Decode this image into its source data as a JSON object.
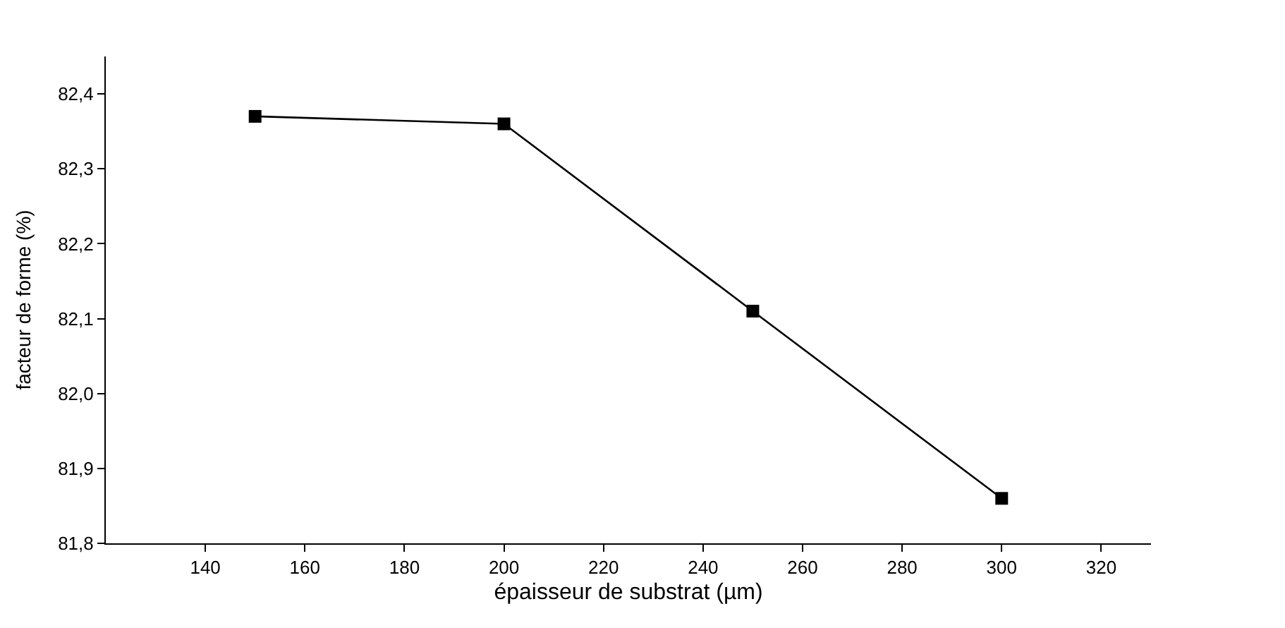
{
  "chart_data": {
    "type": "line",
    "xlabel": "épaisseur de substrat (µm)",
    "ylabel": "facteur de forme (%)",
    "x": [
      150,
      200,
      250,
      300
    ],
    "series": [
      {
        "color": "#000000",
        "values": [
          82.37,
          82.36,
          82.11,
          81.86
        ]
      }
    ],
    "xlim": [
      120,
      330
    ],
    "xticks": [
      140,
      160,
      180,
      200,
      220,
      240,
      260,
      280,
      300,
      320
    ],
    "ylim": [
      81.8,
      82.45
    ],
    "yticks": [
      {
        "value": 81.8,
        "label": "81,8"
      },
      {
        "value": 81.9,
        "label": "81,9"
      },
      {
        "value": 82.0,
        "label": "82,0"
      },
      {
        "value": 82.1,
        "label": "82,1"
      },
      {
        "value": 82.2,
        "label": "82,2"
      },
      {
        "value": 82.3,
        "label": "82,3"
      },
      {
        "value": 82.4,
        "label": "82,4"
      }
    ],
    "legend": false,
    "marker": "square",
    "line_style": "solid"
  }
}
